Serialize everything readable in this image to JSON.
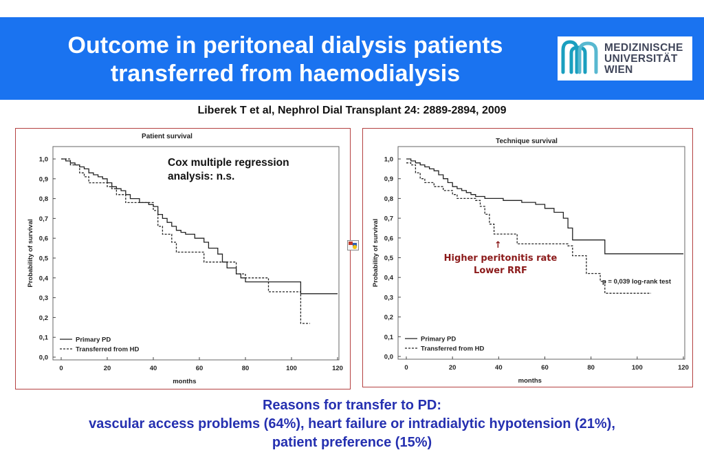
{
  "header": {
    "title_line1": "Outcome in peritoneal dialysis patients",
    "title_line2": "transferred from haemodialysis",
    "logo": {
      "line1": "MEDIZINISCHE",
      "line2": "UNIVERSITÄT",
      "line3": "WIEN"
    }
  },
  "citation": "Liberek T et al, Nephrol Dial Transplant  24: 2889-2894, 2009",
  "annotations": {
    "cox": "Cox multiple regression\nanalysis: n.s.",
    "peritonitis_line1": "Higher peritonitis rate",
    "peritonitis_line2": "Lower RRF",
    "arrow": "↑"
  },
  "footer": {
    "line1": "Reasons for transfer to PD:",
    "line2": "vascular access problems (64%), heart failure or intradialytic hypotension (21%),",
    "line3": "patient preference (15%)"
  },
  "colors": {
    "banner": "#1a73f0",
    "frame": "#b44040",
    "footer_text": "#2530b0",
    "annotation": "#8b1a1a"
  },
  "chart_data": [
    {
      "type": "line",
      "step": true,
      "title": "Patient survival",
      "xlabel": "months",
      "ylabel": "Probability of survival",
      "xlim": [
        0,
        120
      ],
      "ylim": [
        0,
        1
      ],
      "xticks": [
        "0",
        "20",
        "40",
        "60",
        "80",
        "100",
        "120"
      ],
      "yticks": [
        "0,0",
        "0,1",
        "0,2",
        "0,3",
        "0,4",
        "0,5",
        "0,6",
        "0,7",
        "0,8",
        "0,9",
        "1,0"
      ],
      "grid": false,
      "legend_position": "bottom-left",
      "series": [
        {
          "name": "Primary PD",
          "style": "solid",
          "x": [
            0,
            2,
            4,
            6,
            8,
            10,
            12,
            14,
            16,
            18,
            20,
            22,
            24,
            26,
            28,
            30,
            34,
            38,
            40,
            42,
            44,
            46,
            48,
            50,
            52,
            54,
            58,
            62,
            64,
            68,
            70,
            72,
            76,
            78,
            80,
            88,
            92,
            98,
            104,
            120
          ],
          "y": [
            1.0,
            0.99,
            0.98,
            0.97,
            0.96,
            0.95,
            0.93,
            0.92,
            0.91,
            0.9,
            0.88,
            0.86,
            0.85,
            0.84,
            0.82,
            0.8,
            0.78,
            0.77,
            0.76,
            0.72,
            0.7,
            0.68,
            0.66,
            0.64,
            0.63,
            0.62,
            0.6,
            0.58,
            0.55,
            0.52,
            0.48,
            0.45,
            0.42,
            0.4,
            0.38,
            0.38,
            0.38,
            0.38,
            0.32,
            0.32
          ]
        },
        {
          "name": "Transferred from HD",
          "style": "dashed",
          "x": [
            0,
            4,
            8,
            10,
            12,
            16,
            20,
            22,
            24,
            26,
            28,
            32,
            38,
            40,
            42,
            44,
            48,
            50,
            58,
            62,
            68,
            76,
            80,
            90,
            102,
            104,
            108
          ],
          "y": [
            1.0,
            0.97,
            0.93,
            0.91,
            0.88,
            0.88,
            0.86,
            0.85,
            0.82,
            0.82,
            0.78,
            0.78,
            0.78,
            0.74,
            0.66,
            0.62,
            0.58,
            0.53,
            0.53,
            0.48,
            0.48,
            0.42,
            0.4,
            0.33,
            0.33,
            0.17,
            0.17
          ]
        }
      ]
    },
    {
      "type": "line",
      "step": true,
      "title": "Technique survival",
      "xlabel": "months",
      "ylabel": "Probability of survival",
      "xlim": [
        0,
        120
      ],
      "ylim": [
        0,
        1
      ],
      "xticks": [
        "0",
        "20",
        "40",
        "60",
        "80",
        "100",
        "120"
      ],
      "yticks": [
        "0,0",
        "0,1",
        "0,2",
        "0,3",
        "0,4",
        "0,5",
        "0,6",
        "0,7",
        "0,8",
        "0,9",
        "1,0"
      ],
      "grid": false,
      "legend_position": "bottom-left",
      "annotation": "p = 0,039 log-rank test",
      "series": [
        {
          "name": "Primary PD",
          "style": "solid",
          "x": [
            0,
            2,
            4,
            6,
            8,
            10,
            12,
            14,
            16,
            18,
            20,
            22,
            24,
            26,
            28,
            30,
            34,
            40,
            42,
            46,
            50,
            56,
            60,
            64,
            68,
            70,
            72,
            86,
            120
          ],
          "y": [
            1.0,
            0.99,
            0.98,
            0.97,
            0.96,
            0.95,
            0.94,
            0.92,
            0.9,
            0.88,
            0.86,
            0.85,
            0.84,
            0.83,
            0.82,
            0.81,
            0.8,
            0.8,
            0.79,
            0.79,
            0.78,
            0.77,
            0.75,
            0.73,
            0.7,
            0.65,
            0.59,
            0.52,
            0.52
          ]
        },
        {
          "name": "Transferred from HD",
          "style": "dashed",
          "x": [
            0,
            2,
            4,
            6,
            8,
            12,
            16,
            20,
            22,
            28,
            30,
            32,
            34,
            36,
            38,
            40,
            46,
            48,
            50,
            58,
            68,
            70,
            72,
            76,
            78,
            84,
            86,
            106
          ],
          "y": [
            0.98,
            0.97,
            0.93,
            0.9,
            0.88,
            0.86,
            0.84,
            0.82,
            0.8,
            0.8,
            0.79,
            0.76,
            0.72,
            0.67,
            0.62,
            0.62,
            0.62,
            0.57,
            0.57,
            0.57,
            0.57,
            0.56,
            0.51,
            0.51,
            0.42,
            0.38,
            0.32,
            0.32
          ]
        }
      ]
    }
  ]
}
